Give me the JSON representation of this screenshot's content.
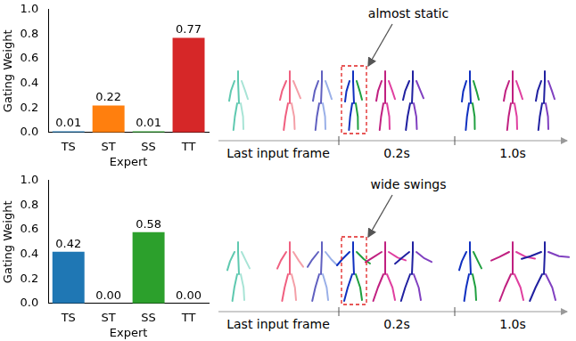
{
  "chart_data": [
    {
      "type": "bar",
      "categories": [
        "TS",
        "ST",
        "SS",
        "TT"
      ],
      "values": [
        0.01,
        0.22,
        0.01,
        0.77
      ],
      "value_labels": [
        "0.01",
        "0.22",
        "0.01",
        "0.77"
      ],
      "colors": [
        "#1f77b4",
        "#ff7f0e",
        "#2ca02c",
        "#d62728"
      ],
      "x_label": "Expert",
      "y_label": "Gating Weight",
      "ylim": [
        0,
        1
      ],
      "yticks": [
        {
          "value": 0,
          "label": "0.0"
        },
        0.2,
        0.4,
        0.6,
        0.8,
        {
          "value": 1,
          "label": "1.0"
        }
      ],
      "grid": false,
      "data_labels": true,
      "annotation": "almost static",
      "timeline_labels": [
        "Last input frame",
        "0.2s",
        "1.0s"
      ]
    },
    {
      "type": "bar",
      "categories": [
        "TS",
        "ST",
        "SS",
        "TT"
      ],
      "values": [
        0.42,
        0.0,
        0.58,
        0.0
      ],
      "value_labels": [
        "0.42",
        "0.00",
        "0.58",
        "0.00"
      ],
      "colors": [
        "#1f77b4",
        "#ff7f0e",
        "#2ca02c",
        "#d62728"
      ],
      "x_label": "Expert",
      "y_label": "Gating Weight",
      "ylim": [
        0,
        1
      ],
      "yticks": [
        {
          "value": 0,
          "label": "0.0"
        },
        0.2,
        0.4,
        0.6,
        0.8,
        {
          "value": 1,
          "label": "1.0"
        }
      ],
      "grid": false,
      "data_labels": true,
      "annotation": "wide swings",
      "timeline_labels": [
        "Last input frame",
        "0.2s",
        "1.0s"
      ]
    }
  ]
}
